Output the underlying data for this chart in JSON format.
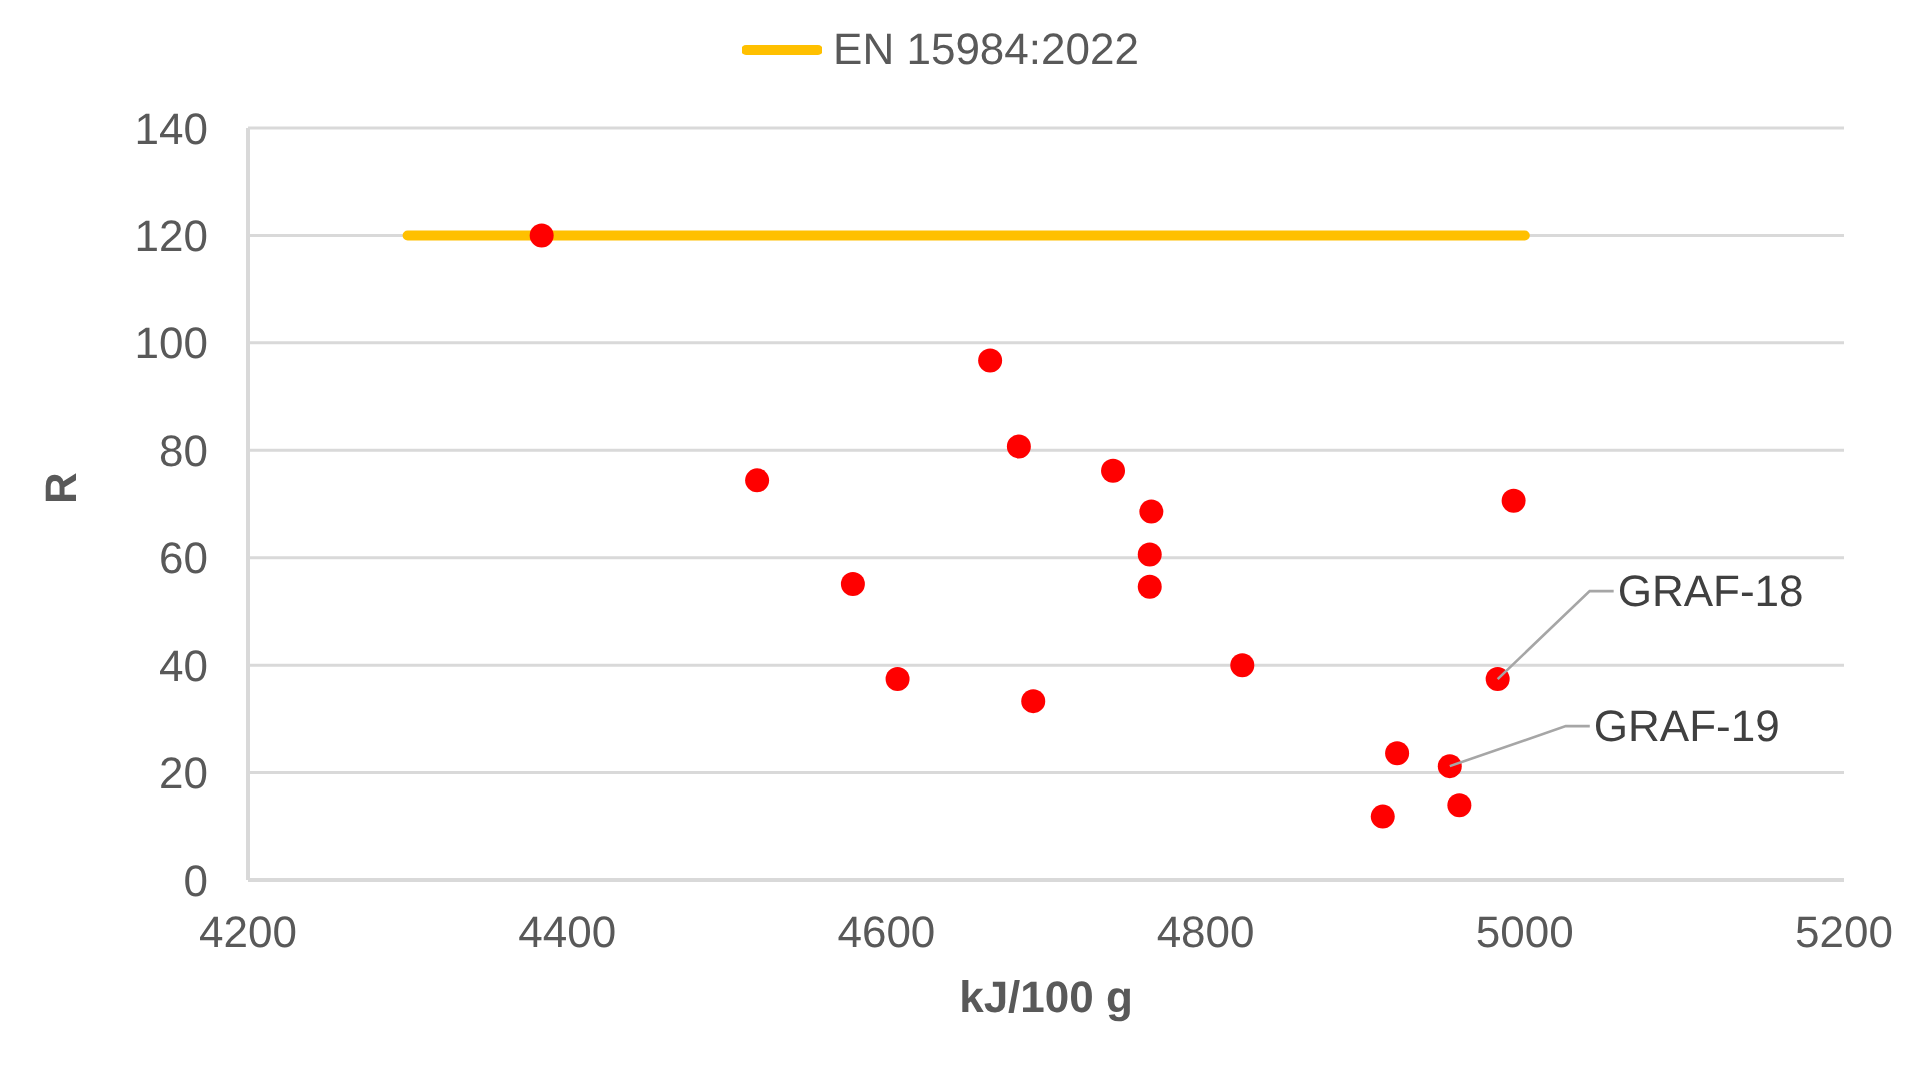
{
  "chart_data": {
    "type": "scatter",
    "xlabel": "kJ/100 g",
    "ylabel": "R",
    "xlim": [
      4200,
      5200
    ],
    "xticks": [
      4200,
      4400,
      4600,
      4800,
      5000,
      5200
    ],
    "ylim": [
      0,
      140
    ],
    "yticks": [
      0,
      20,
      40,
      60,
      80,
      100,
      120,
      140
    ],
    "grid": "y",
    "legend": "top",
    "series": [
      {
        "name": "EN 15984:2022",
        "type": "line",
        "marker": "none",
        "color": "#ffc000",
        "x": [
          4300,
          5000
        ],
        "values": [
          120,
          120
        ]
      },
      {
        "marker": "circle",
        "color": "#ff0000",
        "x": [
          4384,
          4519,
          4579,
          4607,
          4665,
          4683,
          4692,
          4742,
          4766,
          4765,
          4765,
          4823,
          4993,
          4983,
          4920,
          4953,
          4911,
          4959
        ],
        "values": [
          120,
          74.4,
          55.1,
          37.4,
          96.7,
          80.7,
          33.3,
          76.2,
          68.6,
          60.6,
          54.6,
          40,
          70.6,
          37.4,
          23.6,
          21.2,
          11.8,
          13.9
        ]
      }
    ],
    "annotations": [
      {
        "text": "GRAF-18",
        "x": 4983,
        "y": 37.4
      },
      {
        "text": "GRAF-19",
        "x": 4953,
        "y": 21.2
      }
    ]
  }
}
